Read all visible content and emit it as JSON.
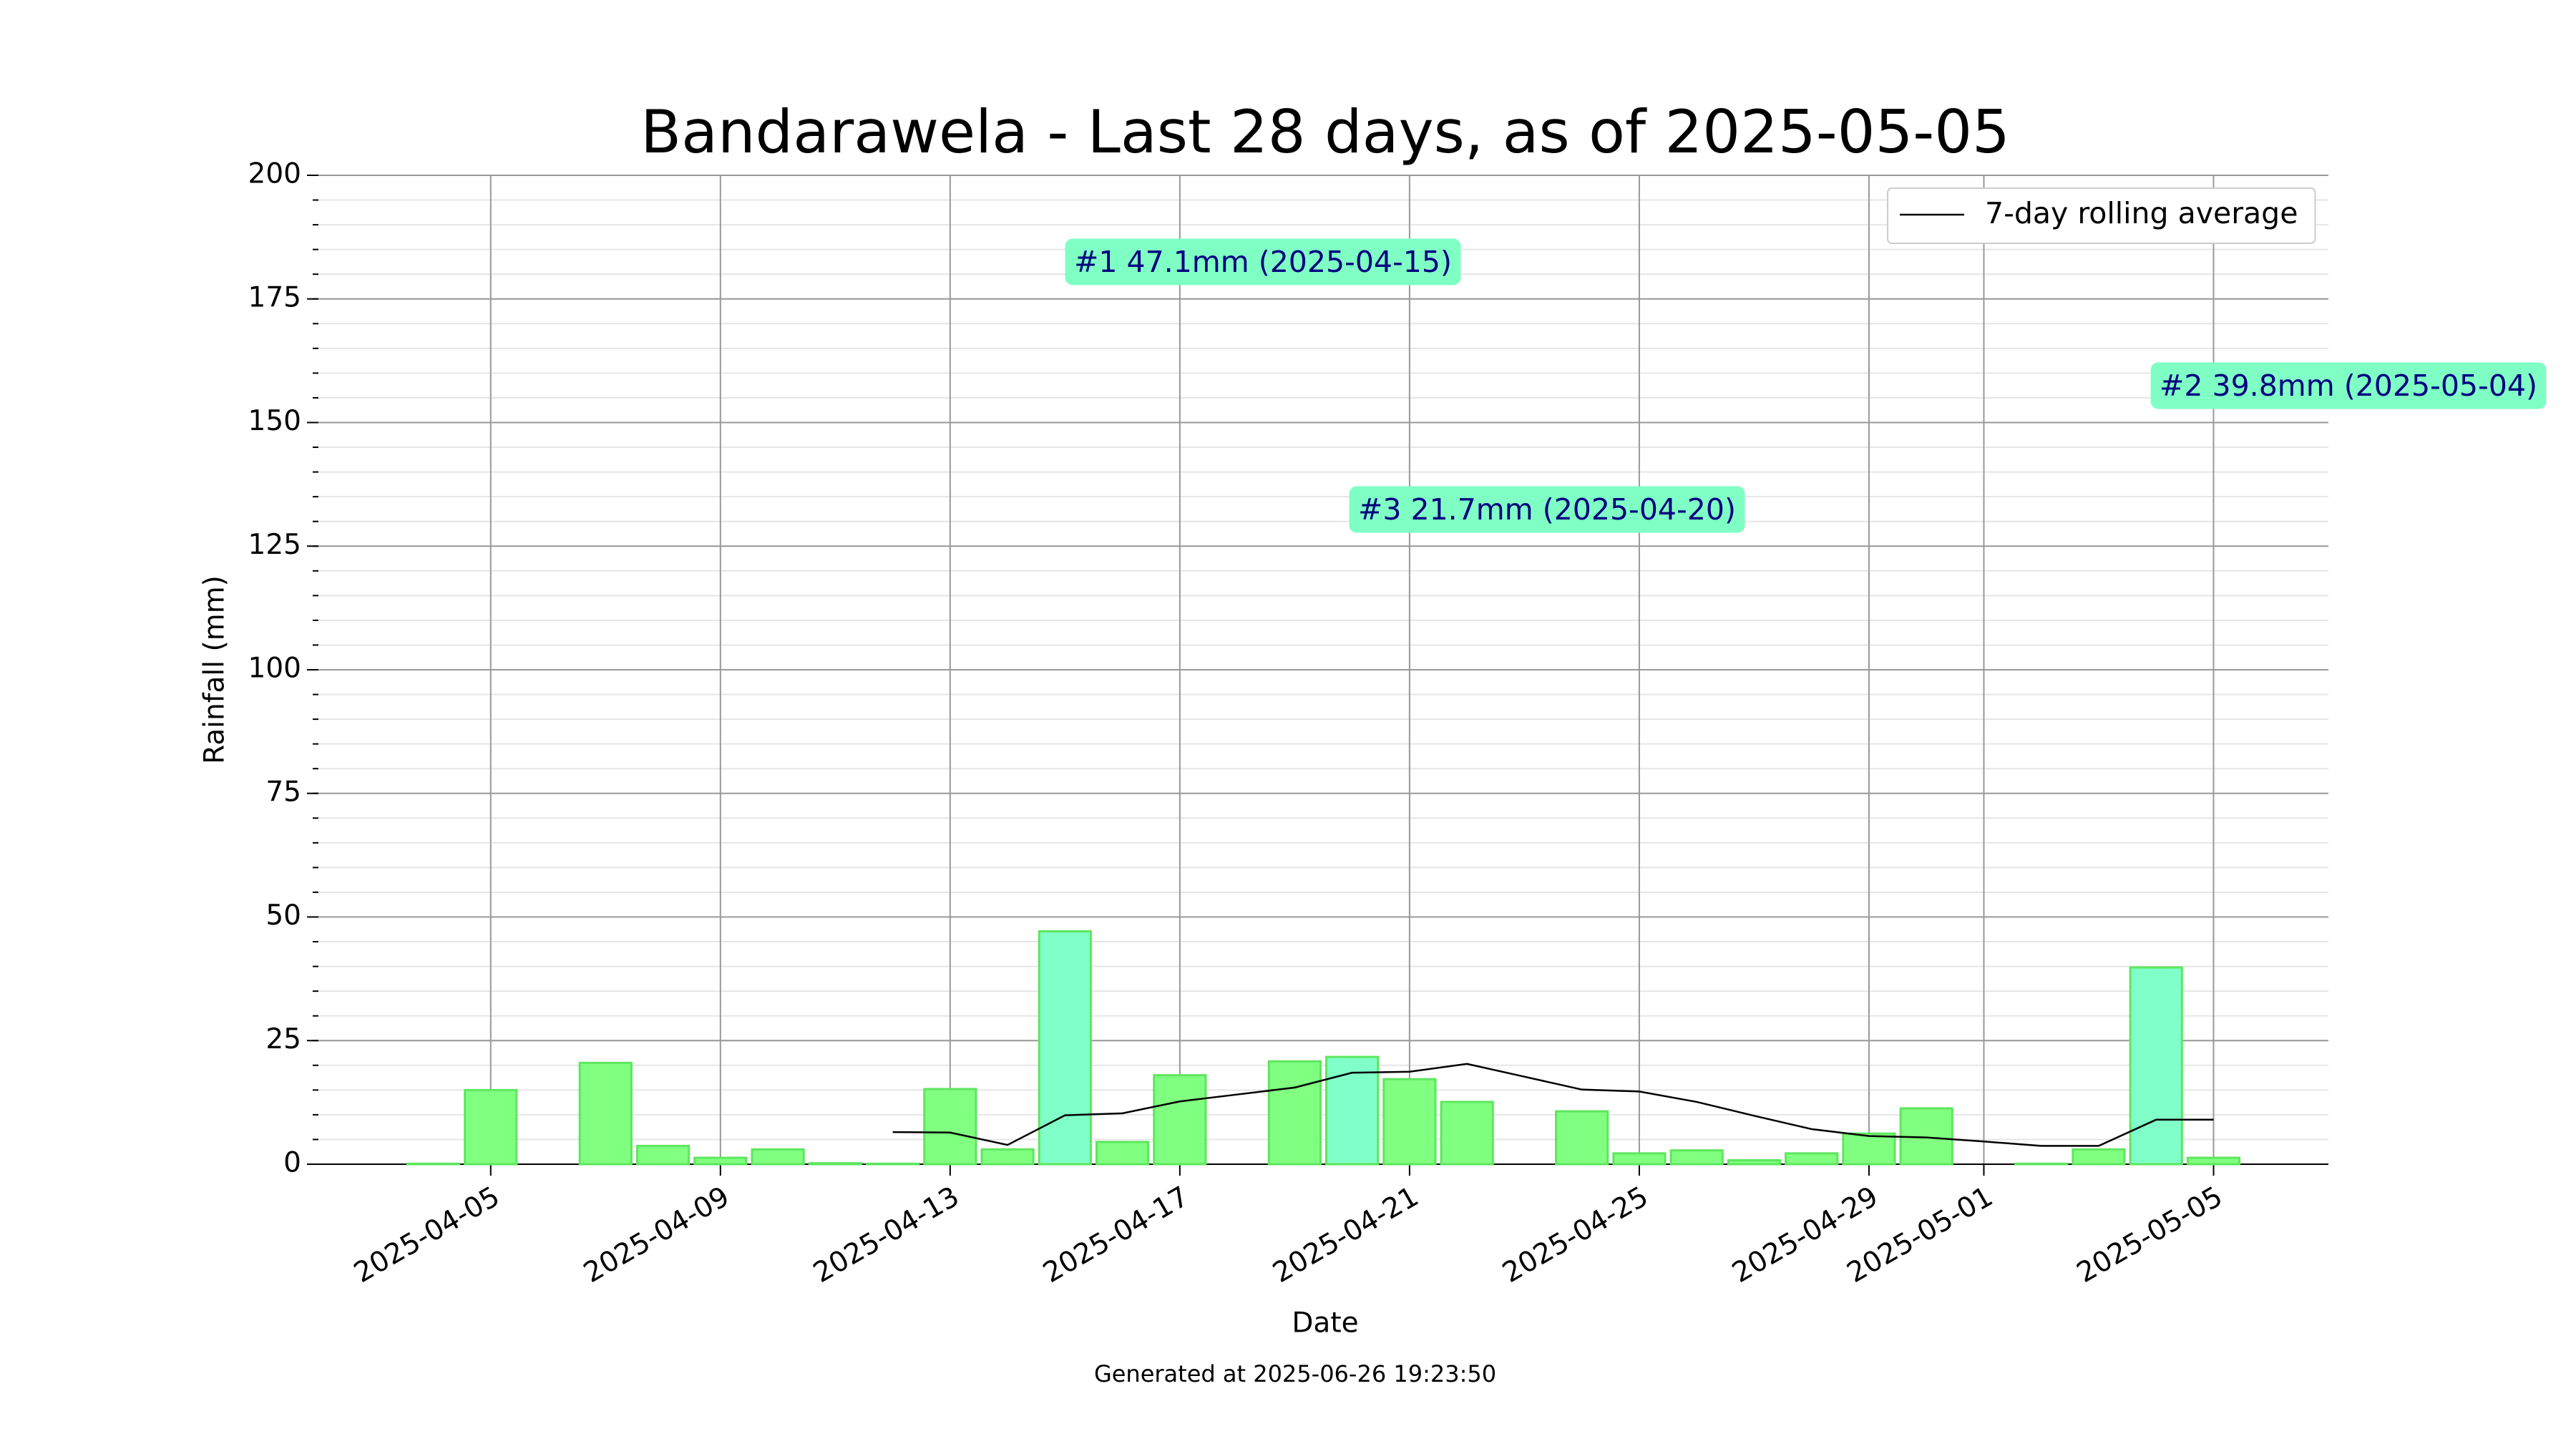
{
  "chart_data": {
    "type": "bar",
    "title": "Bandarawela - Last 28 days, as of 2025-05-05",
    "xlabel": "Date",
    "ylabel": "Rainfall (mm)",
    "footer": "Generated at 2025-06-26 19:23:50",
    "x": [
      "2025-04-04",
      "2025-04-05",
      "2025-04-06",
      "2025-04-07",
      "2025-04-08",
      "2025-04-09",
      "2025-04-10",
      "2025-04-11",
      "2025-04-12",
      "2025-04-13",
      "2025-04-14",
      "2025-04-15",
      "2025-04-16",
      "2025-04-17",
      "2025-04-18",
      "2025-04-19",
      "2025-04-20",
      "2025-04-21",
      "2025-04-22",
      "2025-04-23",
      "2025-04-24",
      "2025-04-25",
      "2025-04-26",
      "2025-04-27",
      "2025-04-28",
      "2025-04-29",
      "2025-04-30",
      "2025-05-01",
      "2025-05-02",
      "2025-05-03",
      "2025-05-04",
      "2025-05-05"
    ],
    "series": [
      {
        "name": "Rainfall",
        "type": "bar",
        "color": "#80ff80",
        "highlight_color": "#80ffc8",
        "values": [
          0.1,
          15,
          0,
          20.5,
          3.7,
          1.3,
          3,
          0.2,
          0.1,
          15.2,
          3,
          47.1,
          4.5,
          18,
          0,
          20.8,
          21.7,
          17.2,
          12.6,
          0,
          10.7,
          2.2,
          2.8,
          0.8,
          2.2,
          6.2,
          11.3,
          0,
          0.1,
          3,
          39.8,
          1.3
        ]
      },
      {
        "name": "7-day rolling average",
        "type": "line",
        "color": "#000000",
        "values": [
          null,
          null,
          null,
          null,
          null,
          null,
          null,
          null,
          6.5,
          6.4,
          3.9,
          9.9,
          10.3,
          12.7,
          14.1,
          15.5,
          18.5,
          18.7,
          20.3,
          17.7,
          15.1,
          14.7,
          12.6,
          9.8,
          7.1,
          5.7,
          5.4,
          4.6,
          3.7,
          3.7,
          9.0,
          9.0
        ]
      }
    ],
    "annotations": [
      {
        "text": "#1 47.1mm (2025-04-15)",
        "date": "2025-04-15"
      },
      {
        "text": "#2 39.8mm (2025-05-04)",
        "date": "2025-05-04"
      },
      {
        "text": "#3 21.7mm (2025-04-20)",
        "date": "2025-04-20"
      }
    ],
    "xlim": [
      "2025-04-02",
      "2025-05-07"
    ],
    "xticks": [
      "2025-04-05",
      "2025-04-09",
      "2025-04-13",
      "2025-04-17",
      "2025-04-21",
      "2025-04-25",
      "2025-04-29",
      "2025-05-01",
      "2025-05-05"
    ],
    "ylim": [
      0,
      200
    ],
    "yticks": [
      0,
      25,
      50,
      75,
      100,
      125,
      150,
      175,
      200
    ],
    "minor_grid_step": 5,
    "grid": true,
    "legend": "upper right"
  }
}
